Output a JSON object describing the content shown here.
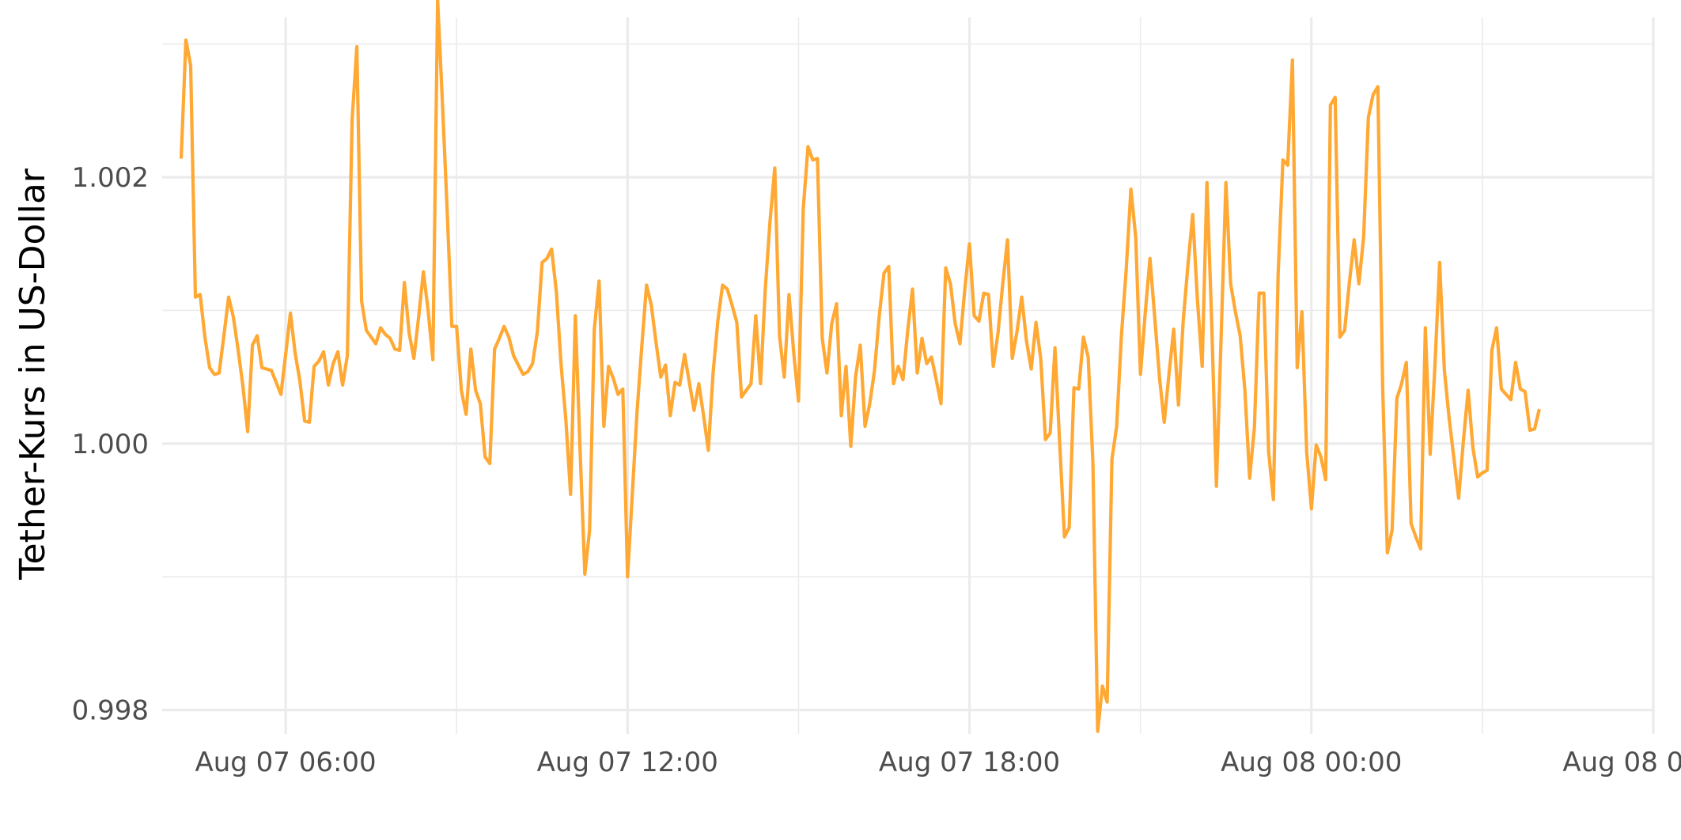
{
  "chart_data": {
    "type": "line",
    "title": "",
    "xlabel": "",
    "ylabel": "Tether-Kurs in US-Dollar",
    "x_type": "datetime",
    "x_start": "2025-08-07T04:10:00",
    "x_step_minutes": 5,
    "xlim": [
      "2025-08-07T03:50:00",
      "2025-08-08T06:00:00"
    ],
    "ylim": [
      0.99782,
      1.0032
    ],
    "y_major_ticks": [
      0.998,
      1.0,
      1.002
    ],
    "y_minor_ticks": [
      0.999,
      1.001,
      1.003
    ],
    "y_tick_labels": [
      "0.998",
      "1.000",
      "1.002"
    ],
    "x_major_ticks": [
      "2025-08-07T06:00:00",
      "2025-08-07T12:00:00",
      "2025-08-07T18:00:00",
      "2025-08-08T00:00:00",
      "2025-08-08T06:00:00"
    ],
    "x_minor_ticks": [
      "2025-08-07T09:00:00",
      "2025-08-07T15:00:00",
      "2025-08-07T21:00:00",
      "2025-08-08T03:00:00"
    ],
    "x_tick_labels": [
      "Aug 07 06:00",
      "Aug 07 12:00",
      "Aug 07 18:00",
      "Aug 08 00:00",
      "Aug 08 06:00"
    ],
    "grid": true,
    "legend": "none",
    "series_color": "#FFA833",
    "series": [
      {
        "values": [
          1.00214,
          1.00303,
          1.00284,
          1.0011,
          1.00112,
          1.0008,
          1.00057,
          1.00052,
          1.00053,
          1.00081,
          1.0011,
          1.00095,
          1.0007,
          1.00043,
          1.00009,
          1.00074,
          1.00081,
          1.00057,
          1.00056,
          1.00055,
          1.00046,
          1.00037,
          1.00067,
          1.00098,
          1.00068,
          1.00047,
          1.00017,
          1.00016,
          1.00058,
          1.00062,
          1.00069,
          1.00044,
          1.0006,
          1.00069,
          1.00044,
          1.00066,
          1.00243,
          1.00298,
          1.00107,
          1.00085,
          1.0008,
          1.00075,
          1.00087,
          1.00082,
          1.00079,
          1.00071,
          1.0007,
          1.00121,
          1.00083,
          1.00064,
          1.00095,
          1.00129,
          1.001,
          1.00063,
          1.00333,
          1.00257,
          1.00176,
          1.00088,
          1.00088,
          1.0004,
          1.00022,
          1.00071,
          1.0004,
          1.0003,
          0.9999,
          0.99985,
          1.00071,
          1.00079,
          1.00088,
          1.0008,
          1.00066,
          1.00059,
          1.00052,
          1.00054,
          1.0006,
          1.00084,
          1.00136,
          1.00139,
          1.00146,
          1.00114,
          1.00059,
          1.00018,
          0.99962,
          1.00096,
          0.99995,
          0.99902,
          0.99935,
          1.00086,
          1.00122,
          1.00013,
          1.00058,
          1.00049,
          1.00037,
          1.00041,
          0.999,
          0.99962,
          1.00024,
          1.00073,
          1.00119,
          1.00104,
          1.00076,
          1.0005,
          1.00059,
          1.00021,
          1.00046,
          1.00044,
          1.00067,
          1.00046,
          1.00025,
          1.00045,
          1.00021,
          0.99995,
          1.00053,
          1.00092,
          1.00119,
          1.00116,
          1.00104,
          1.00091,
          1.00035,
          1.0004,
          1.00045,
          1.00096,
          1.00045,
          1.00116,
          1.00167,
          1.00207,
          1.00081,
          1.0005,
          1.00112,
          1.00068,
          1.00032,
          1.00176,
          1.00223,
          1.00213,
          1.00214,
          1.00079,
          1.00053,
          1.0009,
          1.00105,
          1.00021,
          1.00058,
          0.99998,
          1.0005,
          1.00074,
          1.00013,
          1.0003,
          1.00055,
          1.00096,
          1.00128,
          1.00133,
          1.00045,
          1.00058,
          1.00048,
          1.00085,
          1.00116,
          1.00053,
          1.00079,
          1.0006,
          1.00065,
          1.00048,
          1.0003,
          1.00132,
          1.0012,
          1.0009,
          1.00075,
          1.00115,
          1.0015,
          1.00096,
          1.00092,
          1.00113,
          1.00112,
          1.00058,
          1.00083,
          1.0012,
          1.00153,
          1.00064,
          1.00084,
          1.0011,
          1.00077,
          1.00056,
          1.00091,
          1.00064,
          1.00003,
          1.00008,
          1.00072,
          1.0,
          0.9993,
          0.99937,
          1.00042,
          1.00041,
          1.0008,
          1.00065,
          0.99985,
          0.99784,
          0.99818,
          0.99806,
          0.99988,
          1.00013,
          1.00081,
          1.0013,
          1.00191,
          1.00155,
          1.00052,
          1.00098,
          1.00139,
          1.00095,
          1.0005,
          1.00016,
          1.00052,
          1.00086,
          1.00029,
          1.00092,
          1.00134,
          1.00172,
          1.00108,
          1.00058,
          1.00196,
          1.00092,
          0.99968,
          1.00081,
          1.00196,
          1.0012,
          1.00099,
          1.00081,
          1.0004,
          0.99974,
          1.00012,
          1.00113,
          1.00113,
          0.99994,
          0.99958,
          1.00127,
          1.00213,
          1.00209,
          1.00288,
          1.00057,
          1.00099,
          0.99994,
          0.99951,
          0.99999,
          0.9999,
          0.99973,
          1.00254,
          1.0026,
          1.0008,
          1.00085,
          1.00121,
          1.00153,
          1.0012,
          1.00155,
          1.00245,
          1.00262,
          1.00268,
          1.00044,
          0.99918,
          0.99935,
          1.00034,
          1.00045,
          1.00061,
          0.9994,
          0.9993,
          0.99921,
          1.00087,
          0.99992,
          1.00058,
          1.00136,
          1.00055,
          1.00019,
          0.99989,
          0.99959,
          1.00002,
          1.0004,
          0.99997,
          0.99975,
          0.99978,
          0.9998,
          1.0007,
          1.00087,
          1.00041,
          1.00037,
          1.00033,
          1.00061,
          1.00041,
          1.00039,
          1.0001,
          1.00011,
          1.00026
        ]
      }
    ]
  }
}
